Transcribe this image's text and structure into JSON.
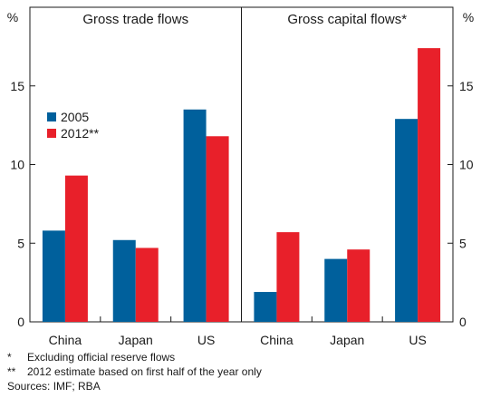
{
  "chart_data": {
    "type": "bar",
    "y_unit": "%",
    "ylim": [
      0,
      20
    ],
    "yticks": [
      0,
      5,
      10,
      15
    ],
    "legend": {
      "placement": "upper-left of first panel",
      "entries": [
        {
          "label": "2005",
          "color": "#00609c"
        },
        {
          "label": "2012**",
          "color": "#e8202a"
        }
      ]
    },
    "panels": [
      {
        "title": "Gross trade flows",
        "categories": [
          "China",
          "Japan",
          "US"
        ],
        "series": [
          {
            "name": "2005",
            "color": "#00609c",
            "values": [
              5.8,
              5.2,
              13.5
            ]
          },
          {
            "name": "2012**",
            "color": "#e8202a",
            "values": [
              9.3,
              4.7,
              11.8
            ]
          }
        ]
      },
      {
        "title": "Gross capital flows*",
        "categories": [
          "China",
          "Japan",
          "US"
        ],
        "series": [
          {
            "name": "2005",
            "color": "#00609c",
            "values": [
              1.9,
              4.0,
              12.9
            ]
          },
          {
            "name": "2012**",
            "color": "#e8202a",
            "values": [
              5.7,
              4.6,
              17.4
            ]
          }
        ]
      }
    ]
  },
  "notes": [
    {
      "mark": "*",
      "text": "Excluding official reserve flows"
    },
    {
      "mark": "**",
      "text": "2012 estimate based on first half of the year only"
    },
    {
      "mark": "",
      "text": "Sources: IMF; RBA"
    }
  ]
}
